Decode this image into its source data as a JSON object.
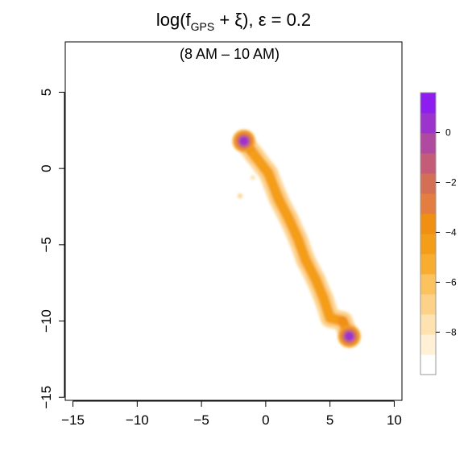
{
  "chart_data": {
    "type": "heatmap",
    "title": {
      "prefix": "log(f",
      "subscript": "GPS",
      "middle": " + ξ), ε = 0.2"
    },
    "subtitle": "(8 AM – 10 AM)",
    "xlabel": "",
    "ylabel": "",
    "xlim": [
      -15.6,
      10.6
    ],
    "ylim": [
      -15.2,
      8.3
    ],
    "x_ticks": [
      -15,
      -10,
      -5,
      0,
      5,
      10
    ],
    "x_tick_labels": [
      "−15",
      "−10",
      "−5",
      "0",
      "5",
      "10"
    ],
    "y_ticks": [
      -15,
      -10,
      -5,
      0,
      5
    ],
    "y_tick_labels": [
      "−15",
      "−10",
      "−5",
      "0",
      "5"
    ],
    "colorbar": {
      "range": [
        -9.7,
        1.6
      ],
      "ticks": [
        0,
        -2,
        -4,
        -6,
        -8
      ],
      "tick_labels": [
        "0",
        "−2",
        "−4",
        "−6",
        "−8"
      ],
      "colors": [
        "#ffffff",
        "#fff0d6",
        "#fee2b0",
        "#fdd188",
        "#fcc25e",
        "#f8ad2e",
        "#f49d18",
        "#f08f12",
        "#e47e40",
        "#d46f55",
        "#c45b77",
        "#b04aa0",
        "#9b33cc",
        "#8e1ef0"
      ]
    },
    "path": [
      {
        "x": -1.7,
        "y": 1.8,
        "v": 0.3
      },
      {
        "x": -0.9,
        "y": 0.9,
        "v": -4.2
      },
      {
        "x": 0.2,
        "y": -0.3,
        "v": -5.0
      },
      {
        "x": 1.0,
        "y": -2.0,
        "v": -4.5
      },
      {
        "x": 1.8,
        "y": -3.3,
        "v": -4.8
      },
      {
        "x": 2.5,
        "y": -4.6,
        "v": -4.4
      },
      {
        "x": 3.1,
        "y": -6.0,
        "v": -4.7
      },
      {
        "x": 3.9,
        "y": -7.3,
        "v": -4.6
      },
      {
        "x": 4.5,
        "y": -8.5,
        "v": -4.9
      },
      {
        "x": 5.0,
        "y": -9.8,
        "v": -5.0
      },
      {
        "x": 6.0,
        "y": -10.0,
        "v": -4.8
      },
      {
        "x": 6.5,
        "y": -11.0,
        "v": 0.0
      }
    ],
    "stray_points": [
      {
        "x": -2.0,
        "y": -1.8,
        "v": -7.0
      },
      {
        "x": -1.0,
        "y": -0.6,
        "v": -7.5
      }
    ]
  }
}
